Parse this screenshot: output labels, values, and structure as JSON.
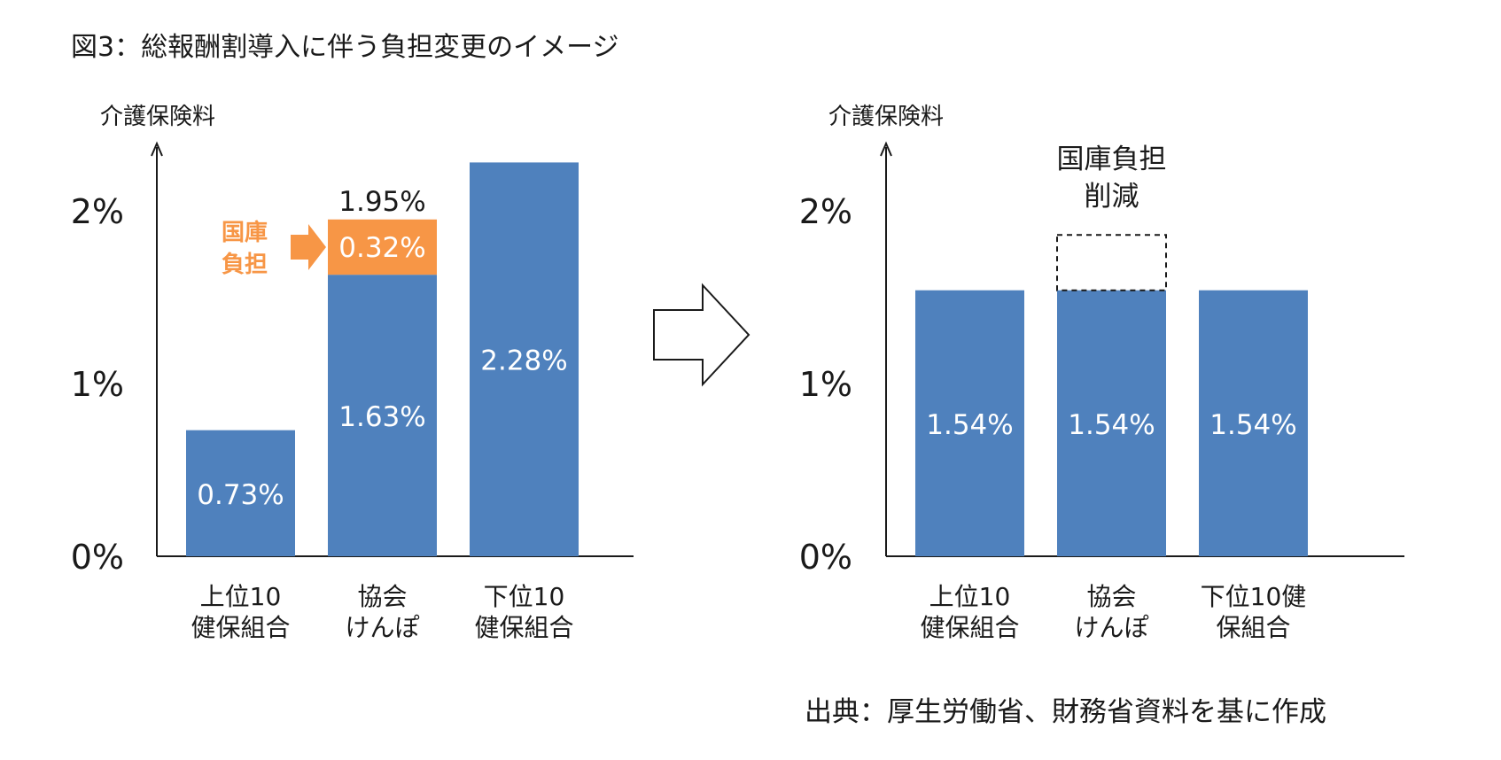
{
  "title": "図3：総報酬割導入に伴う負担変更のイメージ",
  "source": "出典：厚生労働省、財務省資料を基に作成",
  "colors": {
    "bar": "#4f81bd",
    "highlight": "#f79646",
    "axis": "#1a1a1a",
    "label_inside": "#ffffff"
  },
  "chart_data": [
    {
      "type": "bar",
      "stacked": true,
      "ylabel": "介護保険料",
      "ylim": [
        0,
        2.5
      ],
      "yticks": [
        {
          "value": 0,
          "label": "0%"
        },
        {
          "value": 1,
          "label": "1%"
        },
        {
          "value": 2,
          "label": "2%"
        }
      ],
      "categories": [
        {
          "line1": "上位10",
          "line2": "健保組合"
        },
        {
          "line1": "協会",
          "line2": "けんぽ"
        },
        {
          "line1": "下位10",
          "line2": "健保組合"
        }
      ],
      "series": [
        {
          "values": [
            0.73,
            1.63,
            2.28
          ],
          "labels": [
            "0.73%",
            "1.63%",
            "2.28%"
          ]
        },
        {
          "values": [
            0,
            0.32,
            0
          ],
          "labels": [
            "",
            "0.32%",
            ""
          ]
        }
      ],
      "totals": [
        null,
        "1.95%",
        null
      ],
      "annotation": {
        "line1": "国庫",
        "line2": "負担"
      }
    },
    {
      "type": "bar",
      "ylabel": "介護保険料",
      "ylim": [
        0,
        2.5
      ],
      "yticks": [
        {
          "value": 0,
          "label": "0%"
        },
        {
          "value": 1,
          "label": "1%"
        },
        {
          "value": 2,
          "label": "2%"
        }
      ],
      "categories": [
        {
          "line1": "上位10",
          "line2": "健保組合"
        },
        {
          "line1": "協会",
          "line2": "けんぽ"
        },
        {
          "line1": "下位10健",
          "line2": "保組合"
        }
      ],
      "series": [
        {
          "values": [
            1.54,
            1.54,
            1.54
          ],
          "labels": [
            "1.54%",
            "1.54%",
            "1.54%"
          ]
        }
      ],
      "removed": {
        "category_index": 1,
        "value": 0.32
      },
      "annotation": {
        "line1": "国庫負担",
        "line2": "削減"
      }
    }
  ]
}
